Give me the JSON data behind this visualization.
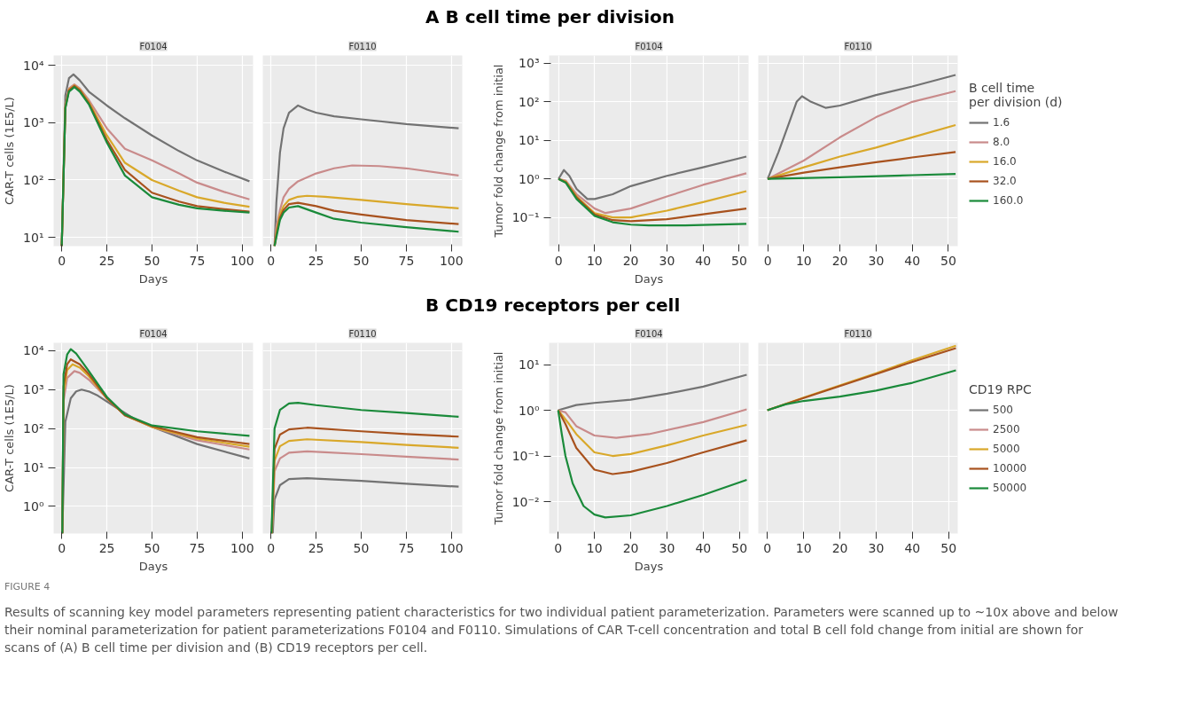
{
  "chart_data": [
    {
      "type": "line",
      "title": "F0104",
      "xlabel": "Days",
      "ylabel": "CAR-T cells (1E5/L)",
      "annotations": [
        "A  B cell time per division"
      ],
      "log": "y",
      "grid": true,
      "xlim": [
        -4.5,
        106
      ],
      "ylim": [
        7,
        15000
      ],
      "xticks": [
        0,
        25,
        50,
        75,
        100
      ],
      "yticks": [
        {
          "value": 10,
          "label": "10¹"
        },
        {
          "value": 100,
          "label": "10²"
        },
        {
          "value": 1000,
          "label": "10³"
        },
        {
          "value": 10000,
          "label": "10⁴"
        }
      ],
      "series": [
        {
          "color": "#737373",
          "x": [
            0,
            2,
            4,
            6.5,
            10,
            15,
            25,
            35,
            50,
            65,
            75,
            90,
            104
          ],
          "values": [
            7,
            3000,
            6000,
            7000,
            5500,
            3500,
            2000,
            1200,
            600,
            320,
            220,
            140,
            95
          ]
        },
        {
          "color": "#c98b8b",
          "x": [
            0,
            2,
            4,
            7,
            10,
            15,
            25,
            35,
            50,
            65,
            75,
            90,
            104
          ],
          "values": [
            7,
            2000,
            4000,
            4700,
            4000,
            2500,
            800,
            350,
            220,
            130,
            90,
            62,
            46
          ]
        },
        {
          "color": "#d9a82a",
          "x": [
            0,
            2,
            4,
            7,
            10,
            15,
            25,
            35,
            50,
            65,
            75,
            90,
            104
          ],
          "values": [
            7,
            1900,
            3800,
            4500,
            3800,
            2300,
            600,
            200,
            100,
            65,
            50,
            40,
            34
          ]
        },
        {
          "color": "#a8521e",
          "x": [
            0,
            2,
            4,
            7,
            10,
            15,
            25,
            35,
            50,
            65,
            75,
            90,
            104
          ],
          "values": [
            7,
            1850,
            3700,
            4400,
            3700,
            2200,
            500,
            150,
            60,
            42,
            35,
            31,
            28
          ]
        },
        {
          "color": "#1a8a3a",
          "x": [
            0,
            2,
            4,
            7,
            10,
            15,
            25,
            35,
            50,
            65,
            75,
            90,
            104
          ],
          "values": [
            7,
            1800,
            3500,
            4200,
            3500,
            2100,
            450,
            120,
            50,
            37,
            32,
            29,
            27
          ]
        }
      ]
    },
    {
      "type": "line",
      "title": "F0110",
      "tick_labels": "x",
      "log": "y",
      "grid": true,
      "xlim": [
        -4.5,
        106
      ],
      "ylim": [
        7,
        15000
      ],
      "xticks": [
        0,
        25,
        50,
        75,
        100
      ],
      "yticks": [
        {
          "value": 10,
          "label": null
        },
        {
          "value": 100,
          "label": null
        },
        {
          "value": 1000,
          "label": null
        },
        {
          "value": 10000,
          "label": null
        }
      ],
      "series": [
        {
          "color": "#737373",
          "x": [
            2,
            3,
            5,
            7,
            10,
            15,
            20,
            25,
            35,
            50,
            75,
            104
          ],
          "values": [
            7,
            40,
            300,
            800,
            1500,
            2000,
            1700,
            1500,
            1300,
            1150,
            950,
            800
          ]
        },
        {
          "color": "#c98b8b",
          "x": [
            2,
            3,
            5,
            7,
            10,
            15,
            25,
            35,
            45,
            60,
            75,
            104
          ],
          "values": [
            7,
            15,
            30,
            50,
            70,
            95,
            130,
            160,
            180,
            175,
            160,
            120
          ]
        },
        {
          "color": "#d9a82a",
          "x": [
            2,
            3,
            5,
            7,
            10,
            15,
            20,
            30,
            50,
            75,
            104
          ],
          "values": [
            7,
            12,
            25,
            35,
            45,
            51,
            53,
            51,
            45,
            38,
            32
          ]
        },
        {
          "color": "#a8521e",
          "x": [
            2,
            3,
            5,
            7,
            10,
            15,
            25,
            35,
            50,
            75,
            104
          ],
          "values": [
            7,
            11,
            22,
            30,
            38,
            40,
            35,
            29,
            25,
            20,
            17
          ]
        },
        {
          "color": "#1a8a3a",
          "x": [
            2,
            3,
            5,
            7,
            10,
            15,
            25,
            35,
            50,
            75,
            104
          ],
          "values": [
            7,
            10,
            20,
            27,
            33,
            35,
            27,
            21,
            18,
            15,
            12.5
          ]
        }
      ]
    },
    {
      "type": "line",
      "title": "F0104",
      "xlabel": "Days",
      "ylabel": "Tumor fold change from initial",
      "log": "y",
      "grid": true,
      "xlim": [
        -2.6,
        52.6
      ],
      "ylim": [
        0.018,
        1600
      ],
      "xticks": [
        0,
        10,
        20,
        30,
        40,
        50
      ],
      "yticks": [
        {
          "value": 0.1,
          "label": "10⁻¹"
        },
        {
          "value": 1,
          "label": "10⁰"
        },
        {
          "value": 10,
          "label": "10¹"
        },
        {
          "value": 100,
          "label": "10²"
        },
        {
          "value": 1000,
          "label": "10³"
        }
      ],
      "series": [
        {
          "color": "#737373",
          "x": [
            0,
            1.5,
            3,
            5,
            8,
            10,
            15,
            20,
            30,
            40,
            52
          ],
          "values": [
            1,
            1.7,
            1.2,
            0.55,
            0.3,
            0.3,
            0.4,
            0.65,
            1.2,
            2,
            3.8
          ]
        },
        {
          "color": "#c98b8b",
          "x": [
            0,
            2,
            5,
            10,
            13,
            20,
            30,
            40,
            52
          ],
          "values": [
            1,
            0.9,
            0.4,
            0.17,
            0.13,
            0.17,
            0.35,
            0.7,
            1.4
          ]
        },
        {
          "color": "#d9a82a",
          "x": [
            0,
            2,
            5,
            10,
            15,
            20,
            30,
            40,
            52
          ],
          "values": [
            1,
            0.85,
            0.35,
            0.13,
            0.1,
            0.1,
            0.15,
            0.25,
            0.48
          ]
        },
        {
          "color": "#a8521e",
          "x": [
            0,
            2,
            5,
            10,
            15,
            20,
            30,
            40,
            52
          ],
          "values": [
            1,
            0.82,
            0.33,
            0.12,
            0.085,
            0.08,
            0.09,
            0.12,
            0.17
          ]
        },
        {
          "color": "#1a8a3a",
          "x": [
            0,
            2,
            5,
            10,
            15,
            20,
            25,
            35,
            52
          ],
          "values": [
            1,
            0.8,
            0.3,
            0.11,
            0.075,
            0.065,
            0.062,
            0.062,
            0.068
          ]
        }
      ]
    },
    {
      "type": "line",
      "title": "F0110",
      "tick_labels": "x",
      "legend": "right",
      "legend_title": "B cell time\nper division (d)",
      "log": "y",
      "grid": true,
      "xlim": [
        -2.6,
        52.6
      ],
      "ylim": [
        0.018,
        1600
      ],
      "xticks": [
        0,
        10,
        20,
        30,
        40,
        50
      ],
      "yticks": [
        {
          "value": 0.1,
          "label": null
        },
        {
          "value": 1,
          "label": null
        },
        {
          "value": 10,
          "label": null
        },
        {
          "value": 100,
          "label": null
        },
        {
          "value": 1000,
          "label": null
        }
      ],
      "series": [
        {
          "name": "1.6",
          "color": "#737373",
          "x": [
            0,
            3,
            6,
            8,
            9.5,
            12,
            16,
            20,
            30,
            40,
            52
          ],
          "values": [
            1,
            5,
            30,
            100,
            140,
            100,
            70,
            80,
            150,
            250,
            500
          ]
        },
        {
          "name": "8.0",
          "color": "#c98b8b",
          "x": [
            0,
            10,
            20,
            30,
            40,
            52
          ],
          "values": [
            1,
            3,
            12,
            40,
            100,
            190
          ]
        },
        {
          "name": "16.0",
          "color": "#d9a82a",
          "x": [
            0,
            10,
            20,
            30,
            40,
            52
          ],
          "values": [
            1,
            2,
            3.8,
            6.5,
            12,
            25
          ]
        },
        {
          "name": "32.0",
          "color": "#a8521e",
          "x": [
            0,
            10,
            20,
            30,
            40,
            52
          ],
          "values": [
            1,
            1.45,
            2,
            2.7,
            3.6,
            5
          ]
        },
        {
          "name": "160.0",
          "color": "#1a8a3a",
          "x": [
            0,
            20,
            40,
            52
          ],
          "values": [
            1,
            1.1,
            1.25,
            1.35
          ]
        }
      ]
    },
    {
      "type": "line",
      "title": "F0104",
      "xlabel": "Days",
      "ylabel": "CAR-T cells (1E5/L)",
      "annotations": [
        "B  CD19 receptors per cell"
      ],
      "log": "y",
      "grid": true,
      "xlim": [
        -4.5,
        106
      ],
      "ylim": [
        0.2,
        16000
      ],
      "xticks": [
        0,
        25,
        50,
        75,
        100
      ],
      "yticks": [
        {
          "value": 1,
          "label": "10⁰"
        },
        {
          "value": 10,
          "label": "10¹"
        },
        {
          "value": 100,
          "label": "10²"
        },
        {
          "value": 1000,
          "label": "10³"
        },
        {
          "value": 10000,
          "label": "10⁴"
        }
      ],
      "series": [
        {
          "color": "#737373",
          "x": [
            0.3,
            2,
            5,
            8,
            11,
            15,
            20,
            30,
            40,
            50,
            75,
            104
          ],
          "values": [
            0.2,
            150,
            600,
            900,
            1000,
            900,
            700,
            350,
            180,
            110,
            40,
            17
          ]
        },
        {
          "color": "#c98b8b",
          "x": [
            0.3,
            1,
            3,
            7,
            10,
            15,
            25,
            35,
            50,
            75,
            104
          ],
          "values": [
            0.2,
            500,
            2000,
            3000,
            2700,
            1800,
            600,
            220,
            110,
            50,
            29
          ]
        },
        {
          "color": "#d9a82a",
          "x": [
            0.3,
            1,
            3,
            6,
            10,
            15,
            25,
            35,
            50,
            75,
            104
          ],
          "values": [
            0.2,
            800,
            3200,
            4500,
            3700,
            2200,
            600,
            220,
            110,
            55,
            34
          ]
        },
        {
          "color": "#a8521e",
          "x": [
            0.3,
            1,
            3,
            5,
            10,
            15,
            25,
            35,
            50,
            75,
            104
          ],
          "values": [
            0.2,
            1200,
            4500,
            6000,
            4500,
            2500,
            600,
            220,
            115,
            60,
            40
          ]
        },
        {
          "color": "#1a8a3a",
          "x": [
            0.3,
            1,
            3,
            5,
            8,
            15,
            25,
            35,
            50,
            75,
            104
          ],
          "values": [
            0.2,
            2500,
            8000,
            11000,
            8500,
            3000,
            650,
            230,
            120,
            85,
            65
          ]
        }
      ]
    },
    {
      "type": "line",
      "title": "F0110",
      "tick_labels": "x",
      "log": "y",
      "grid": true,
      "xlim": [
        -4.5,
        106
      ],
      "ylim": [
        0.2,
        16000
      ],
      "xticks": [
        0,
        25,
        50,
        75,
        100
      ],
      "yticks": [
        {
          "value": 1,
          "label": null
        },
        {
          "value": 10,
          "label": null
        },
        {
          "value": 100,
          "label": null
        },
        {
          "value": 1000,
          "label": null
        },
        {
          "value": 10000,
          "label": null
        }
      ],
      "series": [
        {
          "color": "#737373",
          "x": [
            1,
            2,
            5,
            10,
            20,
            50,
            75,
            104
          ],
          "values": [
            0.2,
            1.5,
            3.5,
            5,
            5.3,
            4.5,
            3.8,
            3.2
          ]
        },
        {
          "color": "#c98b8b",
          "x": [
            0.6,
            2,
            5,
            10,
            20,
            50,
            75,
            104
          ],
          "values": [
            0.2,
            8,
            17,
            24,
            26,
            22,
            19,
            16
          ]
        },
        {
          "color": "#d9a82a",
          "x": [
            0.5,
            2,
            5,
            10,
            20,
            50,
            75,
            104
          ],
          "values": [
            0.2,
            15,
            35,
            48,
            53,
            45,
            38,
            32
          ]
        },
        {
          "color": "#a8521e",
          "x": [
            0.4,
            2,
            5,
            10,
            20,
            50,
            75,
            104
          ],
          "values": [
            0.2,
            30,
            70,
            95,
            105,
            85,
            72,
            62
          ]
        },
        {
          "color": "#1a8a3a",
          "x": [
            0.3,
            2,
            5,
            10,
            15,
            25,
            50,
            75,
            104
          ],
          "values": [
            0.2,
            100,
            300,
            440,
            460,
            400,
            300,
            250,
            200
          ]
        }
      ]
    },
    {
      "type": "line",
      "title": "F0104",
      "xlabel": "Days",
      "ylabel": "Tumor fold change from initial",
      "log": "y",
      "grid": true,
      "xlim": [
        -2.5,
        52.5
      ],
      "ylim": [
        0.002,
        30
      ],
      "xticks": [
        0,
        10,
        20,
        30,
        40,
        50
      ],
      "yticks": [
        {
          "value": 0.01,
          "label": "10⁻²"
        },
        {
          "value": 0.1,
          "label": "10⁻¹"
        },
        {
          "value": 1,
          "label": "10⁰"
        },
        {
          "value": 10,
          "label": "10¹"
        }
      ],
      "series": [
        {
          "color": "#737373",
          "x": [
            0,
            5,
            10,
            20,
            30,
            40,
            52
          ],
          "values": [
            1,
            1.3,
            1.45,
            1.7,
            2.3,
            3.3,
            6
          ]
        },
        {
          "color": "#c98b8b",
          "x": [
            0,
            2,
            5,
            10,
            16,
            25,
            40,
            52
          ],
          "values": [
            1,
            0.9,
            0.45,
            0.28,
            0.25,
            0.3,
            0.55,
            1.05
          ]
        },
        {
          "color": "#d9a82a",
          "x": [
            0,
            3,
            5,
            10,
            15,
            20,
            30,
            40,
            52
          ],
          "values": [
            1,
            0.5,
            0.3,
            0.12,
            0.1,
            0.11,
            0.17,
            0.28,
            0.48
          ]
        },
        {
          "color": "#a8521e",
          "x": [
            0,
            2,
            5,
            10,
            15,
            20,
            30,
            40,
            52
          ],
          "values": [
            1,
            0.5,
            0.15,
            0.05,
            0.04,
            0.045,
            0.07,
            0.12,
            0.22
          ]
        },
        {
          "color": "#1a8a3a",
          "x": [
            0,
            1,
            2,
            4,
            7,
            10,
            13,
            20,
            30,
            40,
            52
          ],
          "values": [
            1,
            0.3,
            0.1,
            0.025,
            0.008,
            0.0052,
            0.0045,
            0.005,
            0.008,
            0.014,
            0.03
          ]
        }
      ]
    },
    {
      "type": "line",
      "title": "F0110",
      "tick_labels": "x",
      "legend": "right",
      "legend_title": "CD19 RPC",
      "log": "y",
      "grid": true,
      "xlim": [
        -2.5,
        52.5
      ],
      "ylim": [
        0.002,
        30
      ],
      "xticks": [
        0,
        10,
        20,
        30,
        40,
        50
      ],
      "yticks": [
        {
          "value": 0.01,
          "label": null
        },
        {
          "value": 0.1,
          "label": null
        },
        {
          "value": 1,
          "label": null
        },
        {
          "value": 10,
          "label": null
        }
      ],
      "annotations": [
        "FIGURE 4",
        "Results of scanning key model parameters representing patient characteristics for two individual patient parameterization. Parameters were scanned up to ~10x above and below their nominal parameterization for patient parameterizations F0104 and F0110. Simulations of CAR T-cell concentration and total B cell fold change from initial are shown for scans of (A) B cell time per division and (B) CD19 receptors per cell."
      ],
      "series": [
        {
          "name": "500",
          "color": "#737373"
        },
        {
          "name": "2500",
          "color": "#c98b8b"
        },
        {
          "name": "5000",
          "color": "#d9a82a",
          "x": [
            0,
            10,
            20,
            30,
            40,
            52
          ],
          "values": [
            1,
            1.9,
            3.5,
            6.5,
            12.5,
            26
          ]
        },
        {
          "name": "10000",
          "color": "#a8521e",
          "x": [
            0,
            10,
            20,
            30,
            40,
            52
          ],
          "values": [
            1,
            1.85,
            3.4,
            6.2,
            11.5,
            23
          ]
        },
        {
          "name": "50000",
          "color": "#1a8a3a",
          "x": [
            0,
            5,
            10,
            20,
            30,
            40,
            52
          ],
          "values": [
            1,
            1.35,
            1.6,
            2,
            2.7,
            4,
            7.5
          ]
        }
      ]
    }
  ]
}
